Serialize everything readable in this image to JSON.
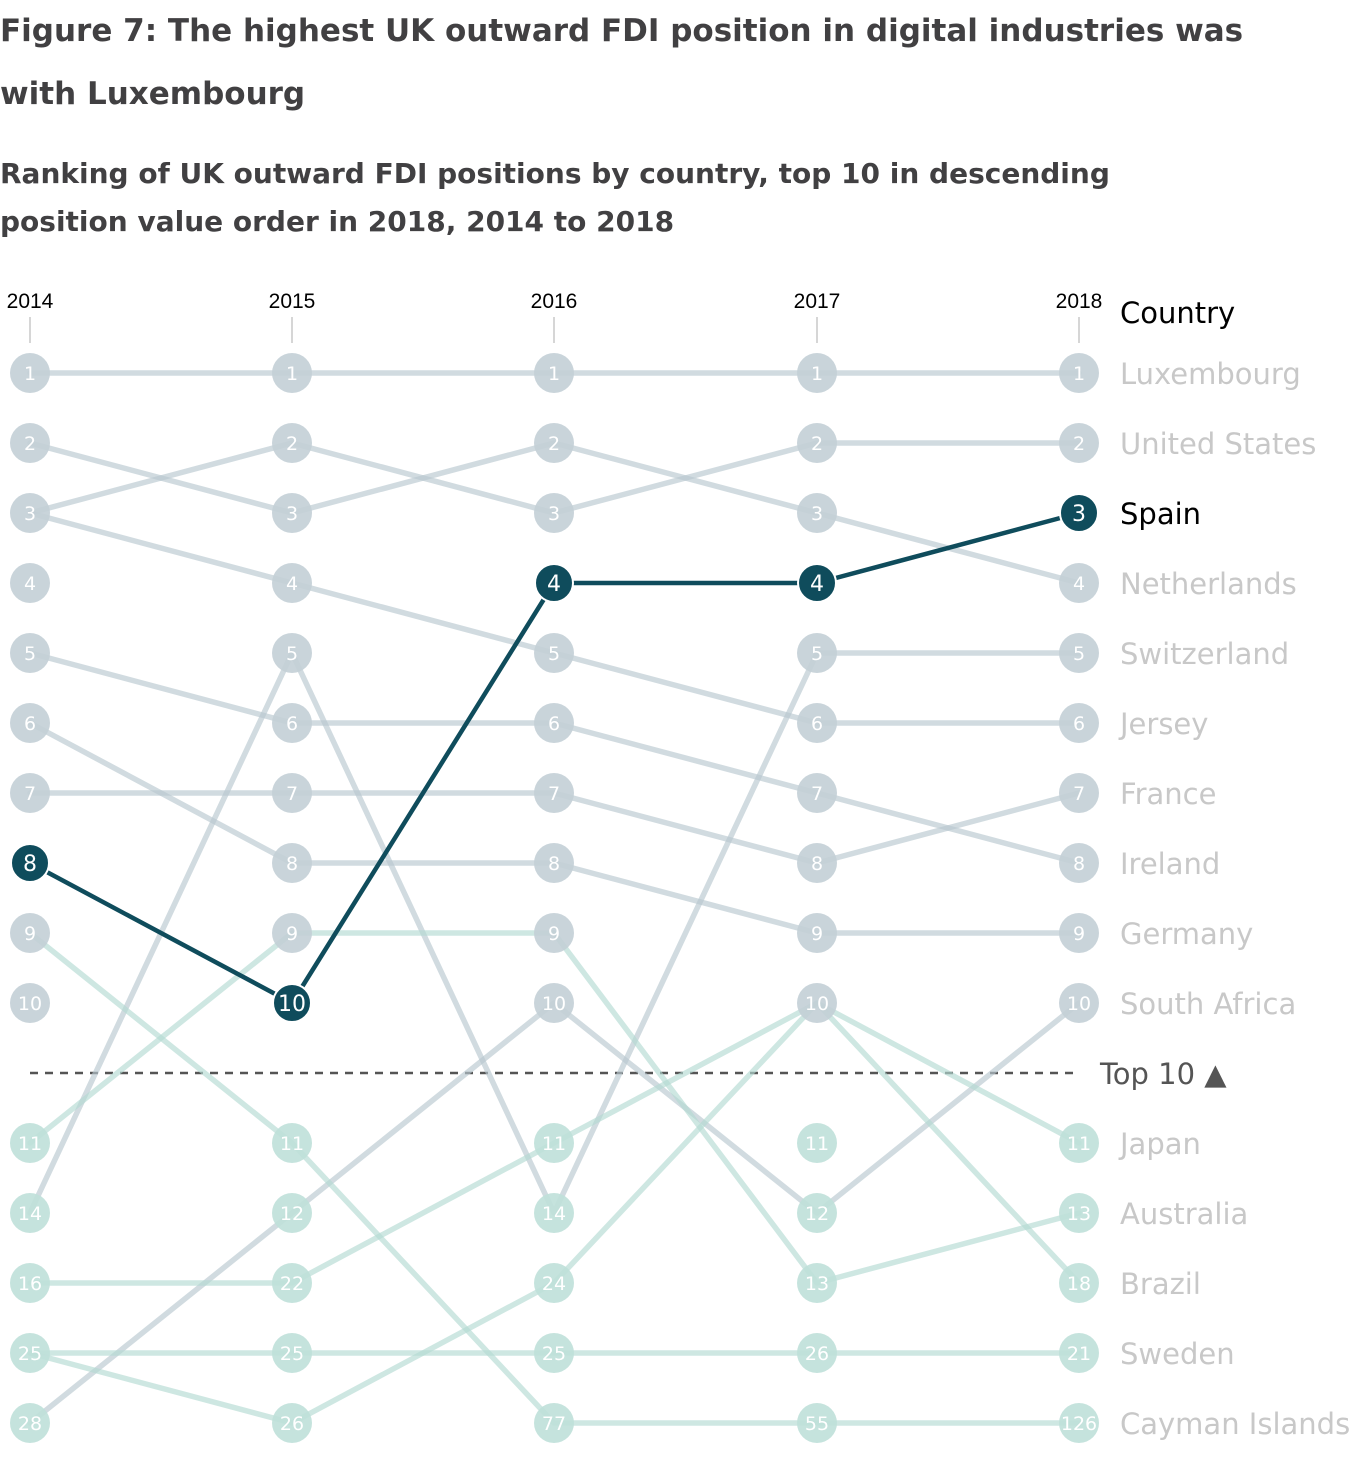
{
  "title": "Figure 7: The highest UK outward FDI position in digital industries was with Luxembourg",
  "subtitle": "Ranking of UK outward FDI positions by country, top 10 in descending position value order in 2018, 2014 to 2018",
  "chart_data": {
    "type": "line",
    "subtype": "bump / rank chart",
    "x": [
      "2014",
      "2015",
      "2016",
      "2017",
      "2018"
    ],
    "label_header": "Country",
    "cutoff_label": "Top 10 ▲",
    "cutoff_after_rank": 10,
    "highlight": "Spain",
    "colors": {
      "highlight": "#0f4c5c",
      "top_series": "#b9c7cf",
      "bottom_series": "#b4dad2",
      "label_muted": "#c8c8c8",
      "label_highlight": "#000000",
      "cutoff_line": "#555555"
    },
    "series": [
      {
        "name": "Luxembourg",
        "ranks": [
          1,
          1,
          1,
          1,
          1
        ]
      },
      {
        "name": "United States",
        "ranks": [
          3,
          2,
          3,
          2,
          2
        ]
      },
      {
        "name": "Spain",
        "ranks": [
          8,
          10,
          4,
          4,
          3
        ]
      },
      {
        "name": "Netherlands",
        "ranks": [
          2,
          3,
          2,
          3,
          4
        ]
      },
      {
        "name": "Switzerland",
        "ranks": [
          14,
          5,
          14,
          5,
          5
        ]
      },
      {
        "name": "Jersey",
        "ranks": [
          3,
          4,
          5,
          6,
          6
        ]
      },
      {
        "name": "France",
        "ranks": [
          7,
          7,
          7,
          8,
          7
        ]
      },
      {
        "name": "Ireland",
        "ranks": [
          5,
          6,
          6,
          7,
          8
        ]
      },
      {
        "name": "Germany",
        "ranks": [
          6,
          8,
          8,
          9,
          9
        ]
      },
      {
        "name": "South Africa",
        "ranks": [
          28,
          12,
          10,
          12,
          10
        ]
      },
      {
        "name": "Japan",
        "ranks": [
          16,
          22,
          11,
          10,
          11
        ]
      },
      {
        "name": "Australia",
        "ranks": [
          11,
          9,
          9,
          13,
          13
        ]
      },
      {
        "name": "Brazil",
        "ranks": [
          25,
          26,
          24,
          10,
          18
        ]
      },
      {
        "name": "Sweden",
        "ranks": [
          25,
          25,
          25,
          26,
          21
        ]
      },
      {
        "name": "Cayman Islands",
        "ranks": [
          9,
          11,
          77,
          55,
          126
        ]
      }
    ],
    "row_values": [
      [
        "1",
        "1",
        "1",
        "1",
        "1"
      ],
      [
        "2",
        "2",
        "2",
        "2",
        "2"
      ],
      [
        "3",
        "3",
        "3",
        "3",
        "3"
      ],
      [
        "4",
        "4",
        "4",
        "4",
        "4"
      ],
      [
        "5",
        "5",
        "5",
        "5",
        "5"
      ],
      [
        "6",
        "6",
        "6",
        "6",
        "6"
      ],
      [
        "7",
        "7",
        "7",
        "7",
        "7"
      ],
      [
        "8",
        "8",
        "8",
        "8",
        "8"
      ],
      [
        "9",
        "9",
        "9",
        "9",
        "9"
      ],
      [
        "10",
        "10",
        "10",
        "10",
        "10"
      ],
      [
        "11",
        "11",
        "11",
        "11",
        "11"
      ],
      [
        "14",
        "12",
        "14",
        "12",
        "13"
      ],
      [
        "16",
        "22",
        "24",
        "13",
        "18"
      ],
      [
        "25",
        "25",
        "25",
        "26",
        "21"
      ],
      [
        "28",
        "26",
        "77",
        "55",
        "126"
      ]
    ]
  }
}
